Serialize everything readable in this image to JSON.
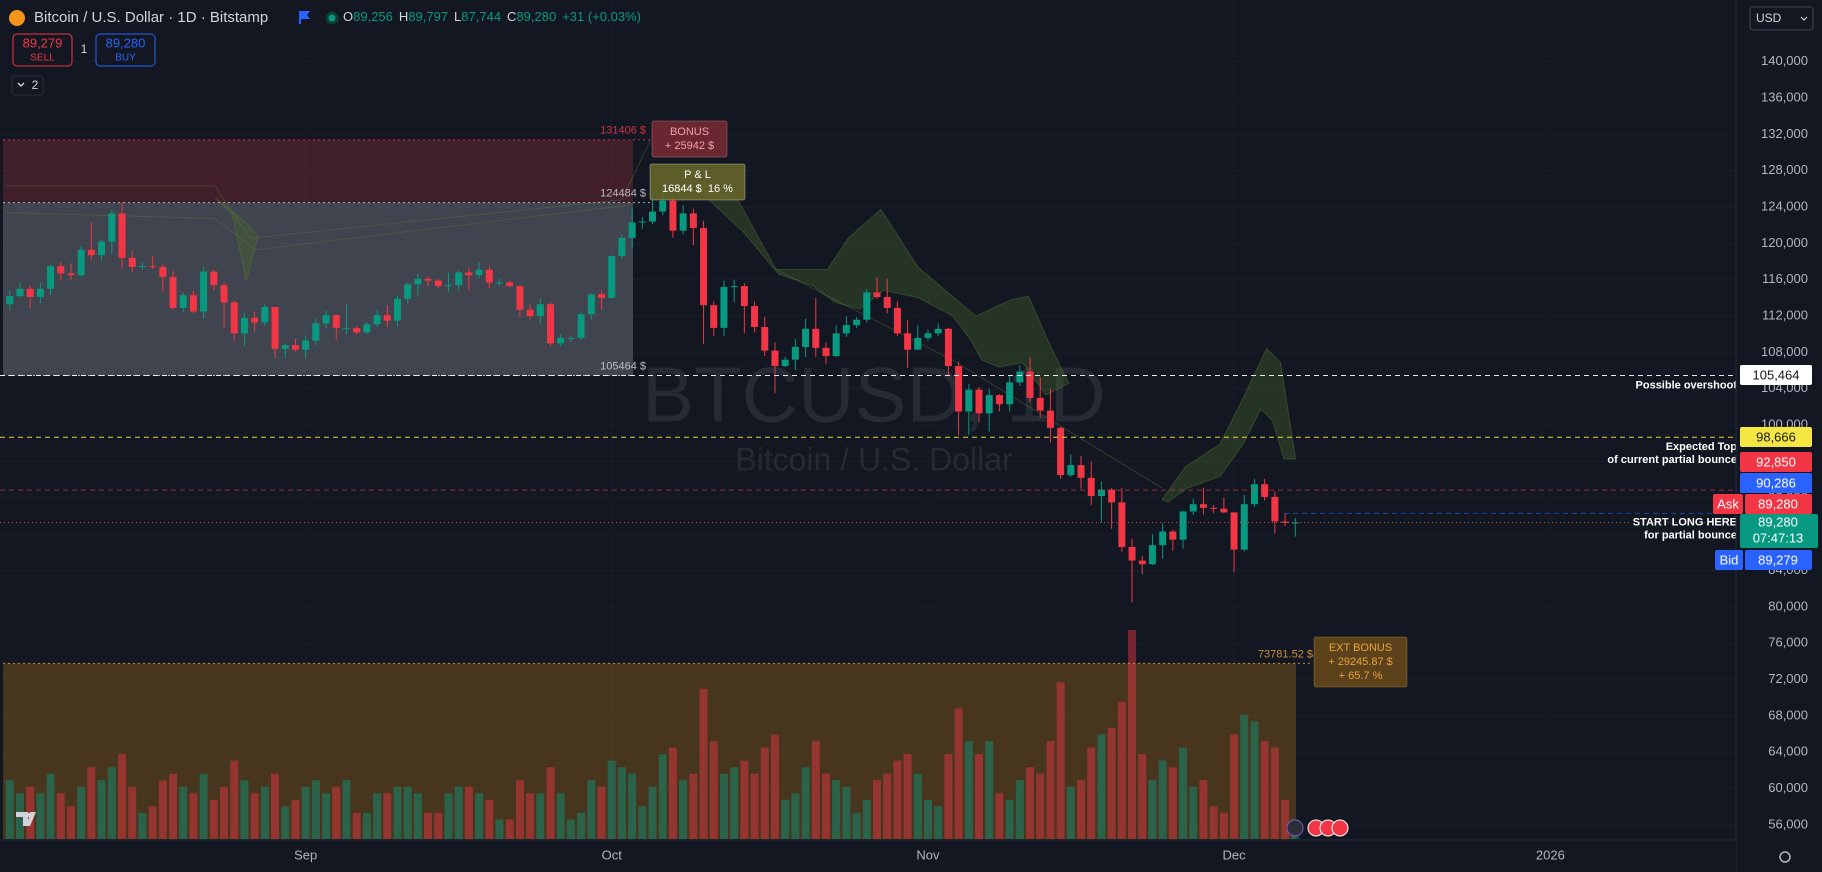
{
  "chart_data": {
    "type": "candlestick",
    "header": {
      "title": "Bitcoin / U.S. Dollar · 1D · Bitstamp",
      "items": [
        {
          "key": "O",
          "value": "89,256"
        },
        {
          "key": "H",
          "value": "89,797"
        },
        {
          "key": "L",
          "value": "87,744"
        },
        {
          "key": "C",
          "value": "89,280"
        }
      ],
      "change": "+31 (+0.03%)"
    },
    "trade": {
      "sell": {
        "price": "89,279",
        "label": "SELL"
      },
      "buy": {
        "price": "89,280",
        "label": "BUY"
      },
      "quantity": "1"
    },
    "indicators_toggle": "2",
    "currency": "USD",
    "watermark": {
      "symbol": "BTCUSD, 1D",
      "description": "Bitcoin / U.S. Dollar"
    },
    "up_color": "#089981",
    "down_color": "#f23645",
    "grid": true,
    "xlim": [
      -0.96,
      169.1
    ],
    "xticks": [
      {
        "value": 29,
        "label": "Sep"
      },
      {
        "value": 59,
        "label": "Oct"
      },
      {
        "value": 90,
        "label": "Nov"
      },
      {
        "value": 120,
        "label": "Dec"
      },
      {
        "value": 151,
        "label": "2026"
      }
    ],
    "ylim": [
      54460,
      146780
    ],
    "yticks": [
      {
        "value": 56000,
        "label": "56,000"
      },
      {
        "value": 60000,
        "label": "60,000"
      },
      {
        "value": 64000,
        "label": "64,000"
      },
      {
        "value": 68000,
        "label": "68,000"
      },
      {
        "value": 72000,
        "label": "72,000"
      },
      {
        "value": 76000,
        "label": "76,000"
      },
      {
        "value": 80000,
        "label": "80,000"
      },
      {
        "value": 84000,
        "label": "84,000"
      },
      {
        "value": 88000,
        "label": "88,000"
      },
      {
        "value": 92000,
        "label": "92,000"
      },
      {
        "value": 96000,
        "label": "96,000"
      },
      {
        "value": 100000,
        "label": "100,000"
      },
      {
        "value": 104000,
        "label": "104,000"
      },
      {
        "value": 108000,
        "label": "108,000"
      },
      {
        "value": 112000,
        "label": "112,000"
      },
      {
        "value": 116000,
        "label": "116,000"
      },
      {
        "value": 120000,
        "label": "120,000"
      },
      {
        "value": 124000,
        "label": "124,000"
      },
      {
        "value": 128000,
        "label": "128,000"
      },
      {
        "value": 132000,
        "label": "132,000"
      },
      {
        "value": 136000,
        "label": "136,000"
      },
      {
        "value": 140000,
        "label": "140,000"
      }
    ],
    "ohlc": [
      [
        113300,
        114800,
        112700,
        114200
      ],
      [
        114200,
        115700,
        114000,
        115000
      ],
      [
        115000,
        115400,
        112900,
        114100
      ],
      [
        114100,
        115700,
        113400,
        115000
      ],
      [
        115000,
        117700,
        114300,
        117500
      ],
      [
        117500,
        117900,
        115900,
        116700
      ],
      [
        116700,
        117800,
        116000,
        116500
      ],
      [
        116500,
        119700,
        116400,
        119300
      ],
      [
        119300,
        122300,
        118200,
        118700
      ],
      [
        118700,
        120400,
        118100,
        120200
      ],
      [
        120200,
        123700,
        118900,
        123300
      ],
      [
        123300,
        124500,
        117200,
        118400
      ],
      [
        118400,
        119200,
        116800,
        117400
      ],
      [
        117400,
        117900,
        117100,
        117500
      ],
      [
        117500,
        118600,
        117200,
        117400
      ],
      [
        117400,
        117700,
        114700,
        116300
      ],
      [
        116300,
        117000,
        112700,
        112900
      ],
      [
        112900,
        114600,
        112400,
        114300
      ],
      [
        114300,
        114800,
        112300,
        112500
      ],
      [
        112500,
        117400,
        111700,
        116900
      ],
      [
        116900,
        117100,
        114800,
        115400
      ],
      [
        115400,
        115700,
        110700,
        113500
      ],
      [
        113500,
        113700,
        109300,
        110100
      ],
      [
        110100,
        112300,
        108700,
        111800
      ],
      [
        111800,
        112500,
        110300,
        111300
      ],
      [
        111300,
        113400,
        110900,
        113000
      ],
      [
        113000,
        113000,
        107400,
        108400
      ],
      [
        108400,
        108900,
        107400,
        108800
      ],
      [
        108800,
        109500,
        108100,
        108300
      ],
      [
        108300,
        109900,
        107300,
        109300
      ],
      [
        109300,
        111700,
        108800,
        111200
      ],
      [
        111200,
        112600,
        110600,
        112100
      ],
      [
        112100,
        112200,
        109400,
        110700
      ],
      [
        110700,
        113300,
        110000,
        110700
      ],
      [
        110700,
        110900,
        109900,
        110200
      ],
      [
        110200,
        111300,
        110000,
        111100
      ],
      [
        111100,
        112700,
        110800,
        112100
      ],
      [
        112100,
        113200,
        110800,
        111500
      ],
      [
        111500,
        114300,
        110900,
        113900
      ],
      [
        113900,
        115700,
        113400,
        115500
      ],
      [
        115500,
        116600,
        114300,
        116100
      ],
      [
        116100,
        116400,
        115300,
        115900
      ],
      [
        115900,
        116100,
        115100,
        115300
      ],
      [
        115300,
        116800,
        114600,
        115400
      ],
      [
        115400,
        117000,
        114800,
        116800
      ],
      [
        116800,
        117300,
        114800,
        116500
      ],
      [
        116500,
        117900,
        116100,
        117100
      ],
      [
        117100,
        117500,
        115100,
        115700
      ],
      [
        115700,
        116100,
        115400,
        115700
      ],
      [
        115700,
        115900,
        115200,
        115300
      ],
      [
        115300,
        115400,
        111900,
        112700
      ],
      [
        112700,
        113300,
        111600,
        112000
      ],
      [
        112000,
        113900,
        111100,
        113300
      ],
      [
        113300,
        113500,
        108700,
        109000
      ],
      [
        109000,
        110000,
        108600,
        109600
      ],
      [
        109600,
        109800,
        109100,
        109600
      ],
      [
        109600,
        112400,
        109300,
        112200
      ],
      [
        112200,
        114500,
        111600,
        114400
      ],
      [
        114400,
        114800,
        112700,
        114000
      ],
      [
        114000,
        118700,
        113900,
        118600
      ],
      [
        118600,
        121000,
        118300,
        120600
      ],
      [
        120600,
        123900,
        119400,
        122300
      ],
      [
        122300,
        122900,
        121600,
        122400
      ],
      [
        122400,
        125700,
        122100,
        123500
      ],
      [
        123500,
        126200,
        123100,
        124700
      ],
      [
        124700,
        125100,
        120600,
        121400
      ],
      [
        121400,
        124200,
        121000,
        123300
      ],
      [
        123300,
        123800,
        119800,
        121700
      ],
      [
        121700,
        122500,
        108900,
        113200
      ],
      [
        113200,
        113600,
        109800,
        110700
      ],
      [
        110700,
        115900,
        109800,
        115200
      ],
      [
        115200,
        116000,
        113500,
        115300
      ],
      [
        115300,
        115600,
        110100,
        113100
      ],
      [
        113100,
        113600,
        110200,
        110800
      ],
      [
        110800,
        111900,
        107600,
        108200
      ],
      [
        108200,
        109100,
        103500,
        106500
      ],
      [
        106500,
        107500,
        106400,
        107200
      ],
      [
        107200,
        109500,
        106100,
        108600
      ],
      [
        108600,
        111700,
        107500,
        110600
      ],
      [
        110600,
        114000,
        107500,
        108500
      ],
      [
        108500,
        109100,
        106700,
        107600
      ],
      [
        107600,
        111000,
        107500,
        110100
      ],
      [
        110100,
        112000,
        109700,
        111000
      ],
      [
        111000,
        111900,
        110700,
        111600
      ],
      [
        111600,
        115000,
        111300,
        114600
      ],
      [
        114600,
        116300,
        113900,
        114100
      ],
      [
        114100,
        116100,
        112300,
        112900
      ],
      [
        112900,
        113600,
        109800,
        110100
      ],
      [
        110100,
        111600,
        106300,
        108300
      ],
      [
        108300,
        111000,
        108300,
        109600
      ],
      [
        109600,
        110500,
        109300,
        110100
      ],
      [
        110100,
        111200,
        109800,
        110600
      ],
      [
        110600,
        110700,
        105400,
        106500
      ],
      [
        106500,
        107000,
        98900,
        101500
      ],
      [
        101500,
        104500,
        98900,
        103900
      ],
      [
        103900,
        104200,
        100300,
        101300
      ],
      [
        101300,
        104000,
        99300,
        103300
      ],
      [
        103300,
        103400,
        101500,
        102300
      ],
      [
        102300,
        105400,
        101500,
        104700
      ],
      [
        104700,
        106600,
        104300,
        105900
      ],
      [
        105900,
        107500,
        102500,
        103000
      ],
      [
        103000,
        105300,
        100800,
        101600
      ],
      [
        101600,
        104000,
        98100,
        99700
      ],
      [
        99700,
        99800,
        94100,
        94500
      ],
      [
        94500,
        96800,
        94300,
        95600
      ],
      [
        95600,
        96600,
        93000,
        94200
      ],
      [
        94200,
        96000,
        91200,
        92200
      ],
      [
        92200,
        93800,
        89300,
        92900
      ],
      [
        92900,
        93100,
        88600,
        91500
      ],
      [
        91500,
        93100,
        86100,
        86600
      ],
      [
        86600,
        87500,
        80500,
        85100
      ],
      [
        85100,
        85600,
        83600,
        84700
      ],
      [
        84700,
        88000,
        84600,
        86800
      ],
      [
        86800,
        89200,
        85300,
        88300
      ],
      [
        88300,
        88500,
        86200,
        87400
      ],
      [
        87400,
        90600,
        86400,
        90500
      ],
      [
        90500,
        91900,
        90100,
        91300
      ],
      [
        91300,
        93100,
        90200,
        90900
      ],
      [
        90900,
        91200,
        90300,
        90800
      ],
      [
        90800,
        92000,
        90300,
        90400
      ],
      [
        90400,
        90400,
        83800,
        86300
      ],
      [
        86300,
        92300,
        86100,
        91300
      ],
      [
        91300,
        94100,
        91000,
        93500
      ],
      [
        93500,
        94100,
        91700,
        92100
      ],
      [
        92100,
        92700,
        88100,
        89400
      ],
      [
        89400,
        90300,
        88900,
        89249
      ],
      [
        89256,
        89797,
        87744,
        89280
      ]
    ],
    "volume": [
      900,
      700,
      800,
      700,
      1000,
      700,
      500,
      800,
      1100,
      900,
      1100,
      1300,
      800,
      400,
      500,
      900,
      1000,
      800,
      700,
      1000,
      600,
      800,
      1200,
      900,
      700,
      800,
      1000,
      500,
      600,
      800,
      900,
      700,
      800,
      900,
      400,
      400,
      700,
      700,
      800,
      800,
      700,
      400,
      400,
      700,
      800,
      800,
      700,
      600,
      300,
      300,
      900,
      700,
      700,
      1100,
      700,
      300,
      400,
      900,
      800,
      1200,
      1100,
      1000,
      500,
      800,
      1300,
      1400,
      900,
      1000,
      2300,
      1500,
      1000,
      1100,
      1200,
      1000,
      1400,
      1600,
      600,
      700,
      1100,
      1500,
      1000,
      900,
      800,
      400,
      600,
      900,
      1000,
      1200,
      1300,
      1000,
      600,
      500,
      1300,
      2000,
      1500,
      1300,
      1500,
      700,
      600,
      900,
      1100,
      1000,
      1500,
      2400,
      800,
      900,
      1400,
      1600,
      1700,
      2100,
      3200,
      1300,
      900,
      1200,
      1100,
      1400,
      800,
      900,
      500,
      400,
      1600,
      1900,
      1800,
      1500,
      1400,
      600,
      300
    ],
    "annotations": [
      {
        "value": 131406,
        "label": "131406 $"
      },
      {
        "value": 124484,
        "label": "124484 $"
      },
      {
        "value": 105464,
        "label": "105464 $"
      },
      {
        "value": 73781.52,
        "label": "73781.52 $"
      }
    ],
    "callouts": [
      {
        "lines": [
          "BONUS",
          "+ 25942 $"
        ]
      },
      {
        "lines": [
          "P & L",
          "16844 $  16 %"
        ]
      },
      {
        "lines": [
          "EXT BONUS",
          "+ 29245.87 $",
          "+ 65.7 %"
        ]
      }
    ],
    "price_lines": [
      {
        "value": 105464,
        "label": "105,464",
        "text": [
          "Possible overshoot"
        ],
        "color": "#ffffff"
      },
      {
        "value": 98666,
        "label": "98,666",
        "text": [
          "Expected Top",
          "of current partial bounce"
        ],
        "color": "#f5e642"
      },
      {
        "value": 92850,
        "label": "92,850",
        "color": "#f23645"
      },
      {
        "value": 90286,
        "label": "90,286",
        "color": "#2962ff"
      }
    ],
    "quotes": {
      "ask": {
        "name": "Ask",
        "value": 89280,
        "label": "89,280",
        "color": "#f23645"
      },
      "last": {
        "value": 89280,
        "label": "89,280",
        "countdown": "07:47:13",
        "text": [
          "START LONG HERE",
          "for partial bounce"
        ],
        "color": "#089981"
      },
      "bid": {
        "name": "Bid",
        "value": 89279,
        "label": "89,279",
        "color": "#2962ff"
      }
    }
  }
}
